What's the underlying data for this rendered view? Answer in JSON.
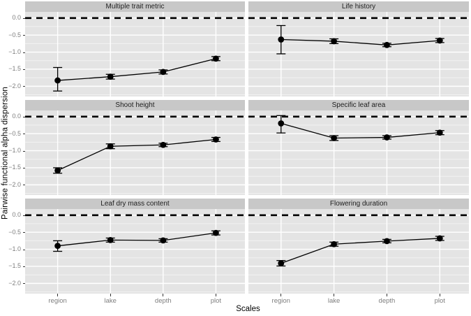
{
  "chart_data": {
    "type": "line",
    "facet_layout": "3 rows x 2 cols",
    "title": "",
    "xlabel": "Scales",
    "ylabel": "Pairwise functional alpha dispersion",
    "categories": [
      "region",
      "lake",
      "depth",
      "plot"
    ],
    "yticks": [
      0.0,
      -0.5,
      -1.0,
      -1.5,
      -2.0
    ],
    "ylim": [
      0.18,
      -2.3
    ],
    "grid": "major and minor horizontal white gridlines, vertical category gridlines",
    "legend_position": "none",
    "reference_line": {
      "y": 0,
      "style": "dashed",
      "color": "#000000"
    },
    "colors": {
      "panel_bg": "#e4e4e4",
      "strip_bg": "#c8c8c8",
      "grid_major": "#ffffff",
      "grid_minor": "#f3f3f3",
      "series": "#000000",
      "tick_label": "#7e7e7e",
      "tick_mark": "#333333"
    },
    "panels": [
      {
        "title": "Multiple trait metric",
        "values": [
          -1.83,
          -1.72,
          -1.58,
          -1.19
        ],
        "err_low": [
          -2.14,
          -1.79,
          -1.64,
          -1.25
        ],
        "err_high": [
          -1.45,
          -1.65,
          -1.52,
          -1.13
        ]
      },
      {
        "title": "Life history",
        "values": [
          -0.63,
          -0.68,
          -0.79,
          -0.66
        ],
        "err_low": [
          -1.05,
          -0.75,
          -0.84,
          -0.72
        ],
        "err_high": [
          -0.22,
          -0.61,
          -0.74,
          -0.6
        ]
      },
      {
        "title": "Shoot height",
        "values": [
          -1.58,
          -0.87,
          -0.83,
          -0.67
        ],
        "err_low": [
          -1.66,
          -0.94,
          -0.88,
          -0.73
        ],
        "err_high": [
          -1.5,
          -0.8,
          -0.78,
          -0.61
        ]
      },
      {
        "title": "Specific leaf area",
        "values": [
          -0.2,
          -0.63,
          -0.61,
          -0.47
        ],
        "err_low": [
          -0.48,
          -0.7,
          -0.66,
          -0.53
        ],
        "err_high": [
          0.03,
          -0.56,
          -0.56,
          -0.41
        ]
      },
      {
        "title": "Leaf dry mass content",
        "values": [
          -0.9,
          -0.73,
          -0.74,
          -0.52
        ],
        "err_low": [
          -1.06,
          -0.79,
          -0.79,
          -0.58
        ],
        "err_high": [
          -0.75,
          -0.67,
          -0.69,
          -0.46
        ]
      },
      {
        "title": "Flowering duration",
        "values": [
          -1.41,
          -0.85,
          -0.76,
          -0.68
        ],
        "err_low": [
          -1.49,
          -0.91,
          -0.81,
          -0.74
        ],
        "err_high": [
          -1.33,
          -0.79,
          -0.71,
          -0.62
        ]
      }
    ]
  }
}
